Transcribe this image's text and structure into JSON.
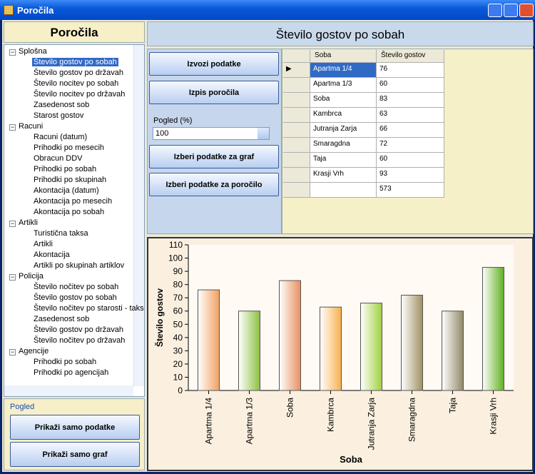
{
  "window": {
    "title": "Poročila"
  },
  "left": {
    "title": "Poročila",
    "tree": [
      {
        "label": "Splošna",
        "items": [
          "Število gostov po sobah",
          "Število gostov po državah",
          "Število nocitev po sobah",
          "Število nocitev po državah",
          "Zasedenost sob",
          "Starost gostov"
        ]
      },
      {
        "label": "Racuni",
        "items": [
          "Racuni (datum)",
          "Prihodki po mesecih",
          "Obracun DDV",
          "Prihodki po sobah",
          "Prihodki po skupinah",
          "Akontacija (datum)",
          "Akontacija po mesecih",
          "Akontacija po sobah"
        ]
      },
      {
        "label": "Artikli",
        "items": [
          "Turistična taksa",
          "Artikli",
          "Akontacija",
          "Artikli po skupinah artiklov"
        ]
      },
      {
        "label": "Policija",
        "items": [
          "Število nočitev po sobah",
          "Število gostov po sobah",
          "Število nočitev po starosti - taks",
          "Zasedenost sob",
          "Število gostov po državah",
          "Število nočitev po državah"
        ]
      },
      {
        "label": "Agencije",
        "items": [
          "Prihodki po sobah",
          "Prihodki po agencijah"
        ]
      }
    ],
    "view_group": {
      "label": "Pogled",
      "buttons": [
        "Prikaži samo podatke",
        "Prikaži samo graf"
      ]
    }
  },
  "header": {
    "title": "Število gostov po sobah"
  },
  "controls": {
    "buttons": [
      "Izvozi podatke",
      "Izpis poročila"
    ],
    "zoom_label": "Pogled (%)",
    "zoom_value": "100",
    "buttons2": [
      "Izberi podatke za graf",
      "Izberi podatke za poročilo"
    ]
  },
  "table": {
    "columns": [
      "Soba",
      "Število gostov"
    ],
    "rows": [
      [
        "Apartma 1/4",
        "76"
      ],
      [
        "Apartma 1/3",
        "60"
      ],
      [
        "Soba",
        "83"
      ],
      [
        "Kambrca",
        "63"
      ],
      [
        "Jutranja Zarja",
        "66"
      ],
      [
        "Smaragdna",
        "72"
      ],
      [
        "Taja",
        "60"
      ],
      [
        "Krasji Vrh",
        "93"
      ]
    ],
    "total": "573"
  },
  "chart_data": {
    "type": "bar",
    "x_label": "Soba",
    "y_label": "Število gostov",
    "categories": [
      "Apartma 1/4",
      "Apartma 1/3",
      "Soba",
      "Kambrca",
      "Jutranja Zarja",
      "Smaragdna",
      "Taja",
      "Krasji Vrh"
    ],
    "values": [
      76,
      60,
      83,
      63,
      66,
      72,
      60,
      93
    ],
    "colors": [
      "#f0a060",
      "#8cc040",
      "#e89060",
      "#f8b050",
      "#a0d040",
      "#a09060",
      "#908868",
      "#60b020"
    ],
    "ylim": [
      0,
      110
    ],
    "yticks": [
      0,
      10,
      20,
      30,
      40,
      50,
      60,
      70,
      80,
      90,
      100,
      110
    ],
    "grid": false
  }
}
